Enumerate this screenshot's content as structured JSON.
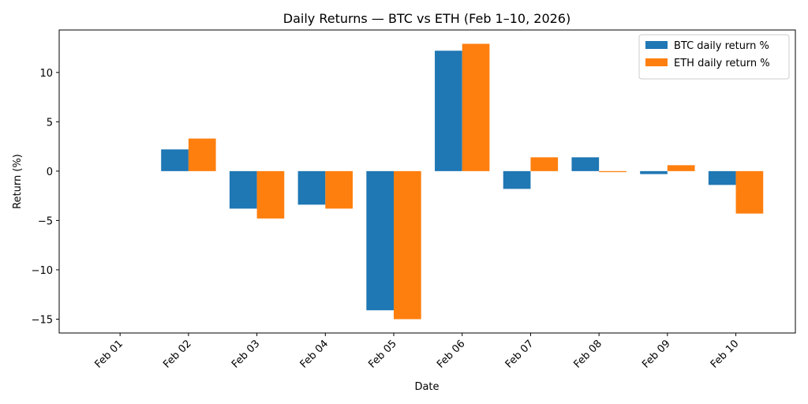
{
  "chart_data": {
    "type": "bar",
    "title": "Daily Returns — BTC vs ETH (Feb 1–10, 2026)",
    "xlabel": "Date",
    "ylabel": "Return (%)",
    "categories": [
      "Feb 01",
      "Feb 02",
      "Feb 03",
      "Feb 04",
      "Feb 05",
      "Feb 06",
      "Feb 07",
      "Feb 08",
      "Feb 09",
      "Feb 10"
    ],
    "series": [
      {
        "name": "BTC daily return %",
        "color": "#1f77b4",
        "values": [
          null,
          2.2,
          -3.8,
          -3.4,
          -14.1,
          12.2,
          -1.8,
          1.4,
          -0.3,
          -1.4
        ]
      },
      {
        "name": "ETH daily return %",
        "color": "#ff7f0e",
        "values": [
          null,
          3.3,
          -4.8,
          -3.8,
          -15.0,
          12.9,
          1.4,
          -0.1,
          0.6,
          -4.3
        ]
      }
    ],
    "ylim": [
      -16.4,
      14.3
    ],
    "yticks": [
      {
        "value": -15,
        "label": "−15"
      },
      {
        "value": -10,
        "label": "−10"
      },
      {
        "value": -5,
        "label": "−5"
      },
      0,
      5,
      10
    ],
    "legend": "upper right",
    "grid": false
  }
}
